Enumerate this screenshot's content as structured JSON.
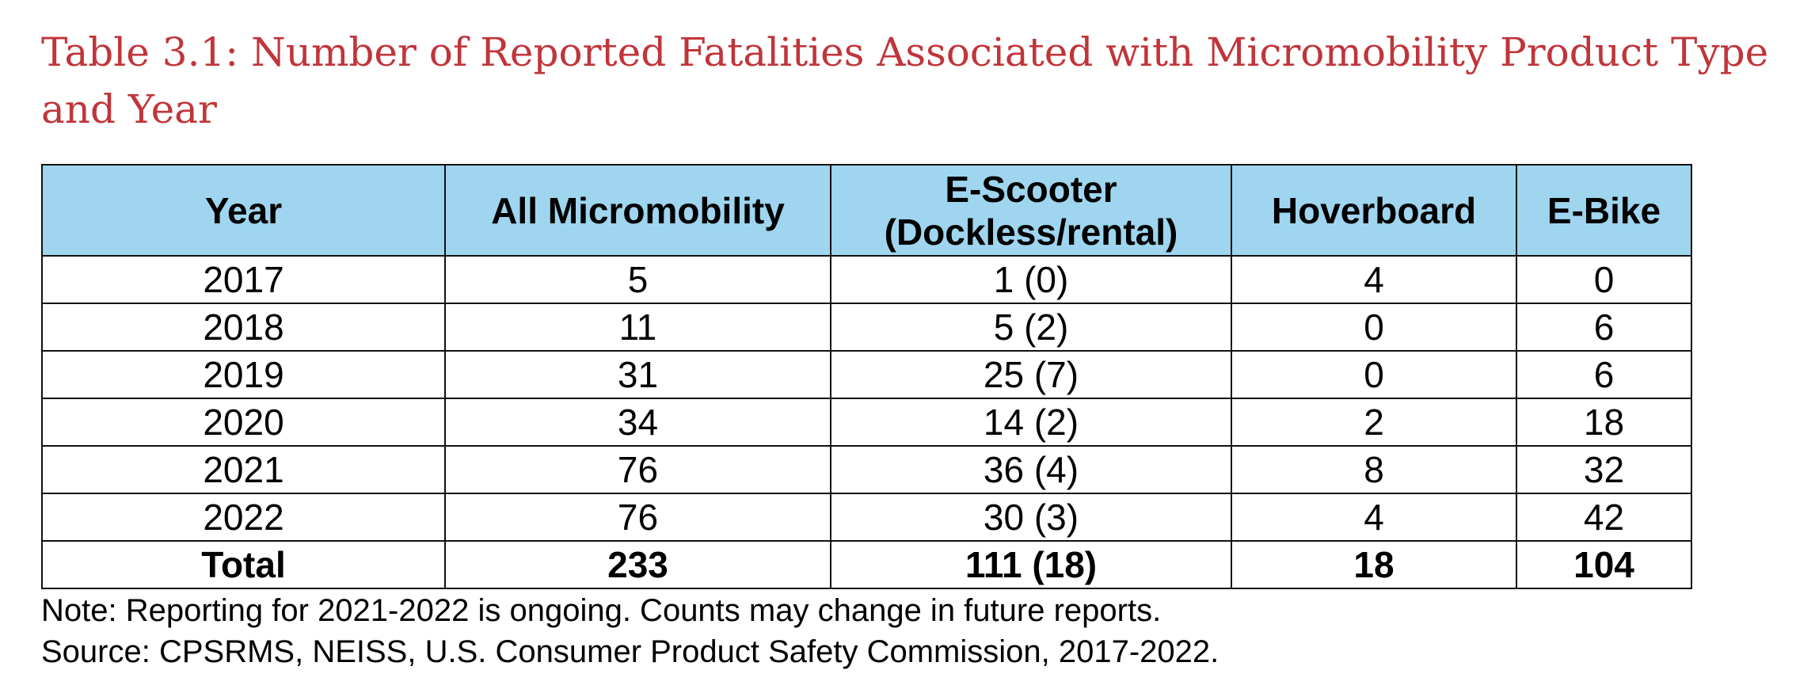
{
  "title": "Table 3.1: Number of Reported Fatalities Associated with Micromobility Product Type and Year",
  "table": {
    "headers": {
      "year": "Year",
      "all": "All Micromobility",
      "escooter_line1": "E-Scooter",
      "escooter_line2": "(Dockless/rental)",
      "hoverboard": "Hoverboard",
      "ebike": "E-Bike"
    },
    "rows": [
      {
        "year": "2017",
        "all": "5",
        "escooter": "1 (0)",
        "hoverboard": "4",
        "ebike": "0"
      },
      {
        "year": "2018",
        "all": "11",
        "escooter": "5 (2)",
        "hoverboard": "0",
        "ebike": "6"
      },
      {
        "year": "2019",
        "all": "31",
        "escooter": "25 (7)",
        "hoverboard": "0",
        "ebike": "6"
      },
      {
        "year": "2020",
        "all": "34",
        "escooter": "14 (2)",
        "hoverboard": "2",
        "ebike": "18"
      },
      {
        "year": "2021",
        "all": "76",
        "escooter": "36 (4)",
        "hoverboard": "8",
        "ebike": "32"
      },
      {
        "year": "2022",
        "all": "76",
        "escooter": "30 (3)",
        "hoverboard": "4",
        "ebike": "42"
      }
    ],
    "total": {
      "year": "Total",
      "all": "233",
      "escooter": "111 (18)",
      "hoverboard": "18",
      "ebike": "104"
    }
  },
  "notes": {
    "note": "Note: Reporting for 2021-2022 is ongoing. Counts may change in future reports.",
    "source": "Source: CPSRMS, NEISS, U.S. Consumer Product Safety Commission, 2017-2022."
  },
  "colors": {
    "title": "#c0353a",
    "header_bg": "#9fd5ef",
    "border": "#111111"
  }
}
